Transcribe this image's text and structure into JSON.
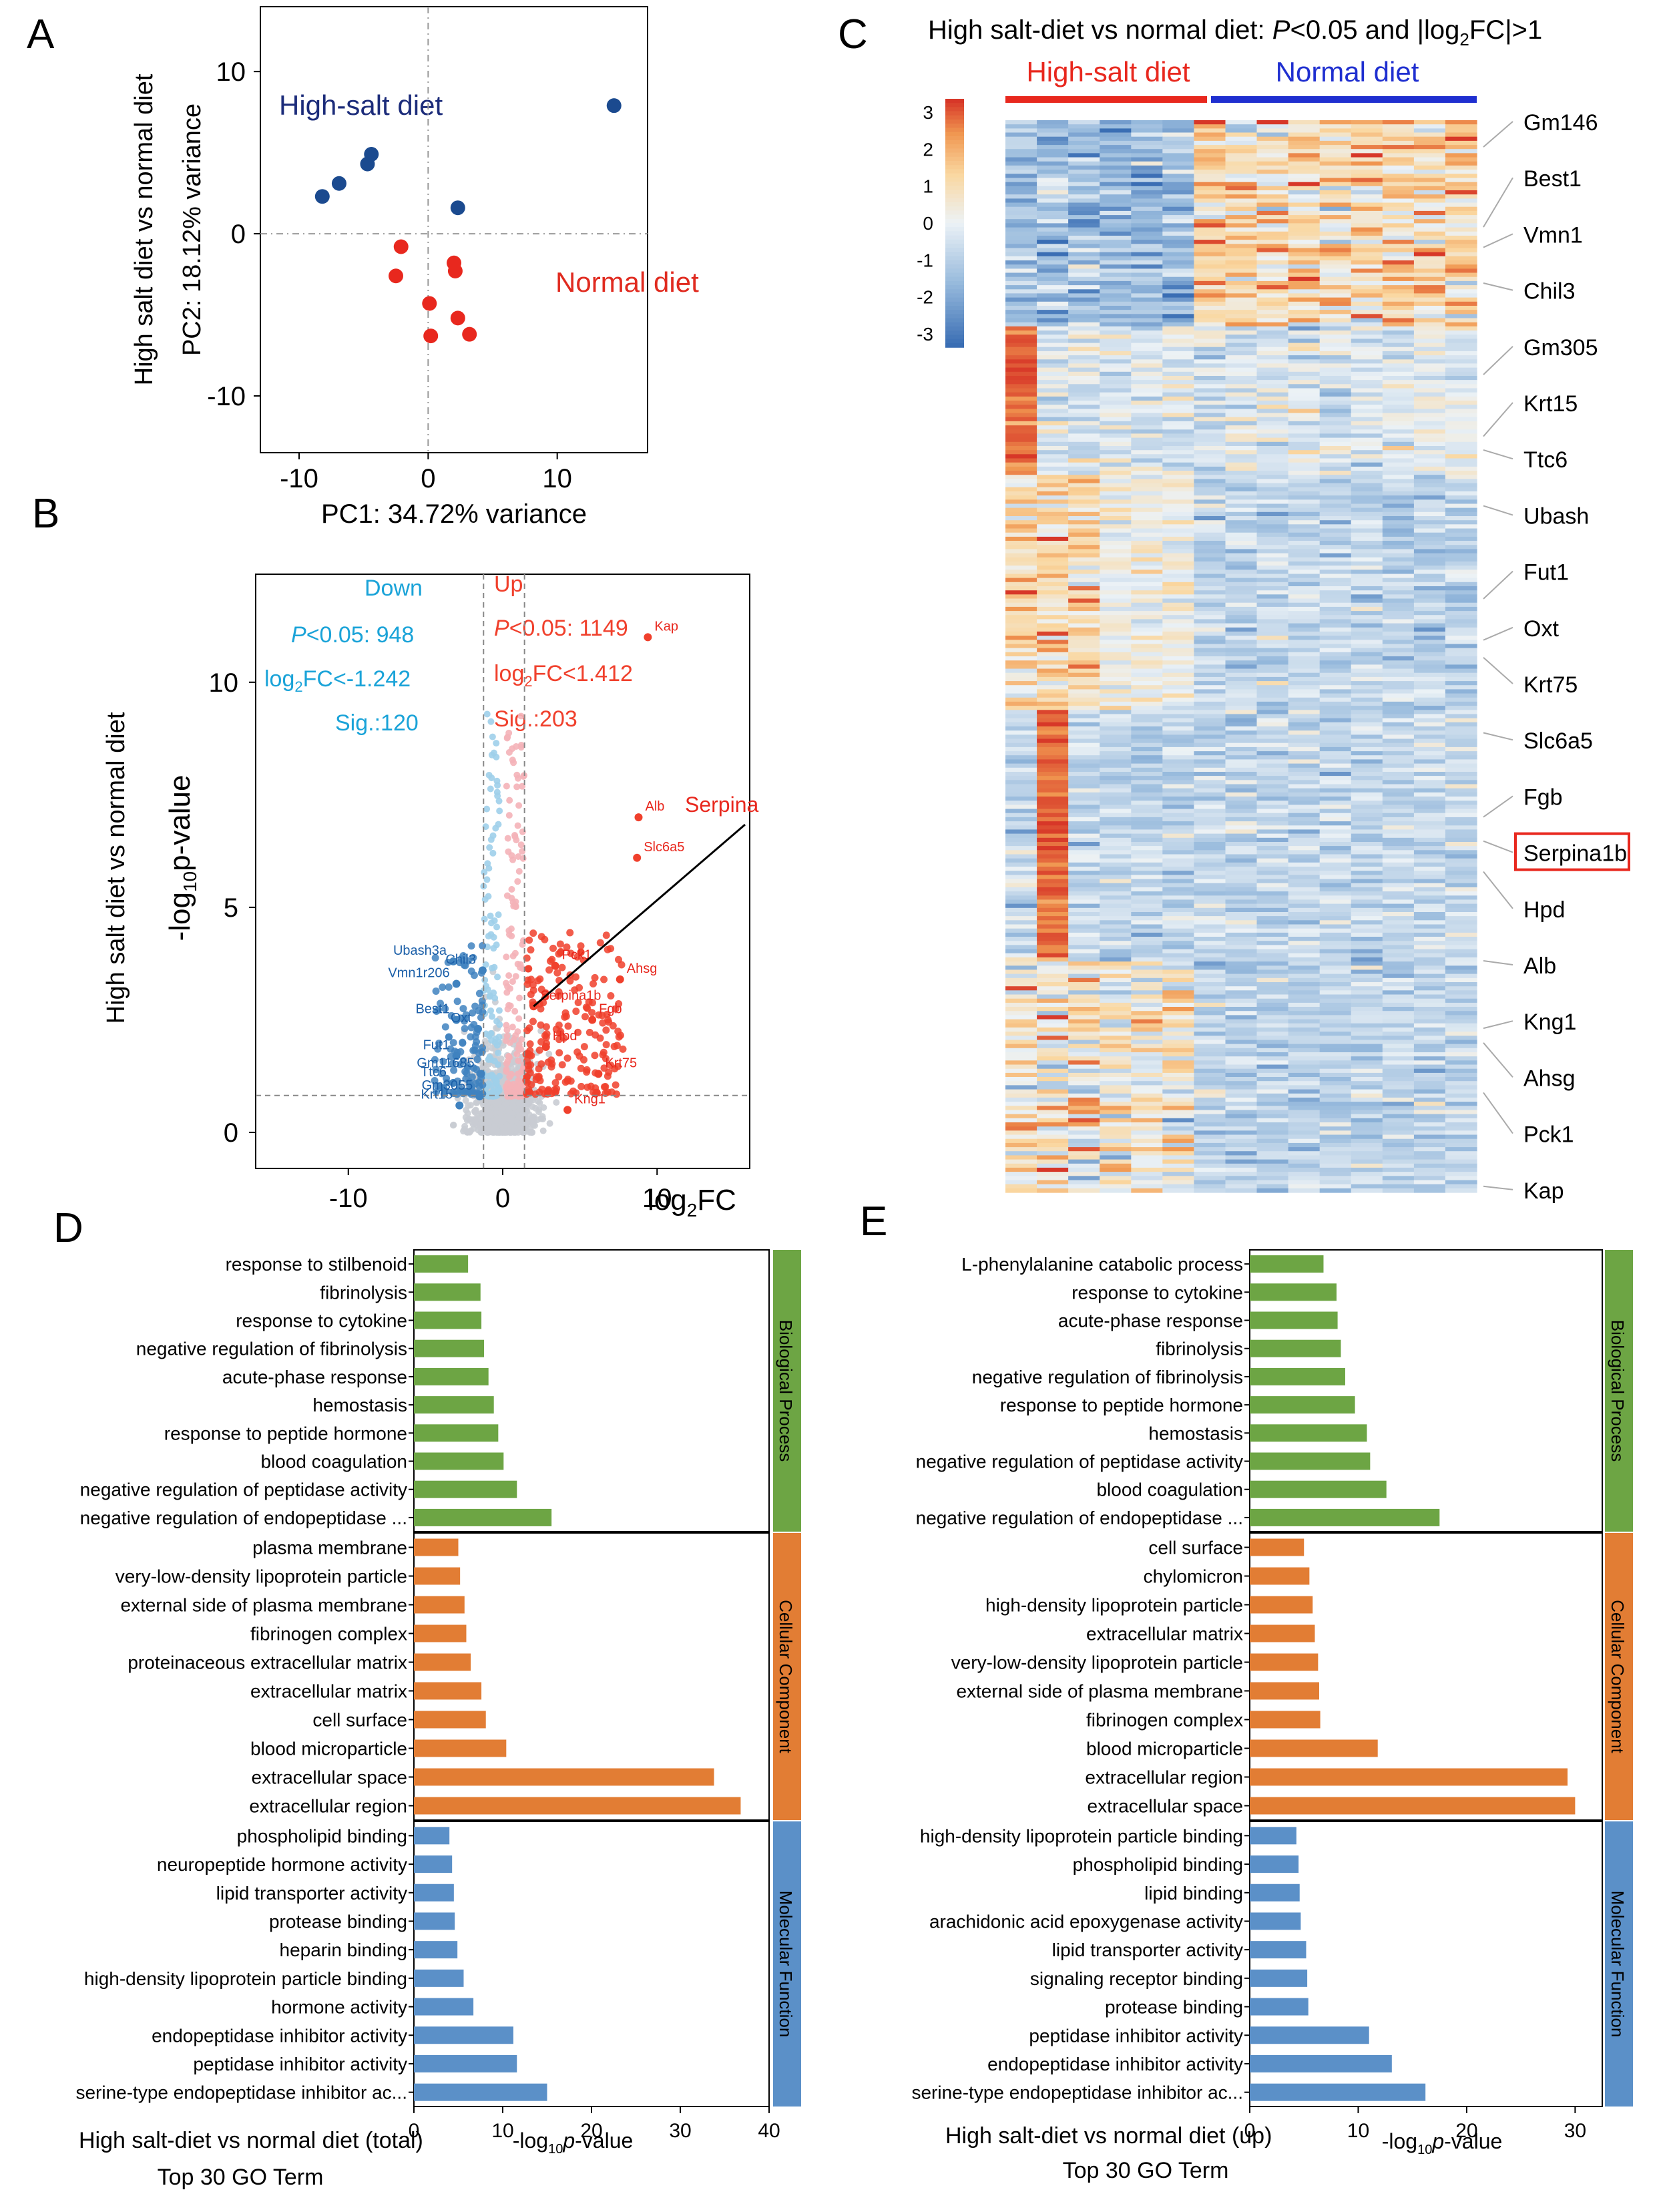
{
  "panel_labels": {
    "a": "A",
    "b": "B",
    "c": "C",
    "d": "D",
    "e": "E"
  },
  "colors": {
    "blue_dark": "#1b4a8f",
    "red": "#e8281e",
    "down_blue": "#1aa3d8",
    "up_red": "#f0402c",
    "green": "#6da544",
    "orange": "#e27d34",
    "mf_blue": "#5b90c8",
    "grey": "#bdbdbd"
  },
  "chart_data": [
    {
      "panel": "A",
      "type": "scatter",
      "title": "",
      "xlabel": "PC1: 34.72% variance",
      "ylabel": "PC2: 18.12% variance",
      "side_label": "High salt diet vs normal diet",
      "xlim": [
        -13,
        17
      ],
      "ylim": [
        -13.5,
        14
      ],
      "xticks": [
        -10,
        0,
        10
      ],
      "yticks": [
        -10,
        0,
        10
      ],
      "tick_labels_x": [
        "-10",
        "0",
        "10"
      ],
      "tick_labels_y": [
        "-10",
        "0",
        "10"
      ],
      "annotations": [
        "High-salt diet",
        "Normal diet"
      ],
      "series": [
        {
          "name": "High-salt diet",
          "color": "#1b4a8f",
          "points": [
            [
              -8.2,
              2.3
            ],
            [
              -6.9,
              3.1
            ],
            [
              -4.7,
              4.3
            ],
            [
              -4.4,
              4.9
            ],
            [
              2.3,
              1.6
            ],
            [
              14.4,
              7.9
            ]
          ]
        },
        {
          "name": "Normal diet",
          "color": "#e8281e",
          "points": [
            [
              -2.1,
              -0.8
            ],
            [
              -2.5,
              -2.6
            ],
            [
              2.0,
              -1.8
            ],
            [
              2.1,
              -2.3
            ],
            [
              0.1,
              -4.3
            ],
            [
              2.3,
              -5.2
            ],
            [
              0.2,
              -6.3
            ],
            [
              3.2,
              -6.2
            ]
          ]
        }
      ]
    },
    {
      "panel": "B",
      "type": "scatter",
      "subtype": "volcano",
      "xlabel": "log2FC",
      "ylabel": "-log10p-value",
      "side_label": "High salt diet vs normal diet",
      "xlim": [
        -16,
        16
      ],
      "ylim": [
        -0.8,
        12.4
      ],
      "xticks": [
        -10,
        0,
        10
      ],
      "yticks": [
        0,
        5,
        10
      ],
      "tick_labels_x": [
        "-10",
        "0",
        "10"
      ],
      "tick_labels_y": [
        "0",
        "5",
        "10"
      ],
      "thresholds": {
        "log2fc_down": -1.242,
        "log2fc_up": 1.412,
        "p": 0.82
      },
      "legend": {
        "down": {
          "title": "Down",
          "p_prefix": "P",
          "p_text": "<0.05: 948",
          "fc_text": "log2FC<-1.242",
          "sig_text": "Sig.:120"
        },
        "up": {
          "title": "Up",
          "p_prefix": "P",
          "p_text": "<0.05: 1149",
          "fc_text": "log2FC<1.412",
          "sig_text": "Sig.:203"
        }
      },
      "labeled_genes_up": [
        {
          "gene": "Kap",
          "x": 9.4,
          "y": 11.0
        },
        {
          "gene": "Alb",
          "x": 8.8,
          "y": 7.0
        },
        {
          "gene": "Slc6a5",
          "x": 8.7,
          "y": 6.1
        },
        {
          "gene": "Pck1",
          "x": 3.4,
          "y": 3.7
        },
        {
          "gene": "Ahsg",
          "x": 7.6,
          "y": 3.4
        },
        {
          "gene": "Serpina1b",
          "x": 2.0,
          "y": 2.8
        },
        {
          "gene": "Fgb",
          "x": 5.8,
          "y": 2.5
        },
        {
          "gene": "Hpd",
          "x": 2.8,
          "y": 1.9
        },
        {
          "gene": "Krt75",
          "x": 6.2,
          "y": 1.3
        },
        {
          "gene": "Kng1",
          "x": 4.2,
          "y": 0.5
        }
      ],
      "labeled_genes_down": [
        {
          "gene": "Ubash3a",
          "x": -3.2,
          "y": 3.8
        },
        {
          "gene": "Vmn1r206",
          "x": -3.0,
          "y": 3.3
        },
        {
          "gene": "Chil3",
          "x": -1.3,
          "y": 3.6
        },
        {
          "gene": "Best1",
          "x": -3.0,
          "y": 2.5
        },
        {
          "gene": "Oxt",
          "x": -1.6,
          "y": 2.3
        },
        {
          "gene": "Fut1",
          "x": -3.0,
          "y": 1.7
        },
        {
          "gene": "Gm11685",
          "x": -1.4,
          "y": 1.3
        },
        {
          "gene": "Ttc6",
          "x": -3.2,
          "y": 1.1
        },
        {
          "gene": "Gm3055",
          "x": -1.5,
          "y": 0.8
        },
        {
          "gene": "Krt15",
          "x": -2.8,
          "y": 0.6
        }
      ],
      "callout": "Serpina"
    },
    {
      "panel": "C",
      "type": "heatmap",
      "title_prefix": "High salt-diet vs normal diet: ",
      "title_p": "P",
      "title_suffix": "<0.05 and |log2FC|>1",
      "groups": [
        {
          "name": "High-salt diet",
          "color": "#e8281e"
        },
        {
          "name": "Normal diet",
          "color": "#1f2fd0"
        }
      ],
      "color_scale": {
        "ticks": [
          "3",
          "2",
          "1",
          "0",
          "-1",
          "-2",
          "-3"
        ],
        "min": -3,
        "max": 3
      },
      "n_columns": 15,
      "n_rows": 260,
      "row_labels": [
        "Gm146",
        "Best1",
        "Vmn1",
        "Chil3",
        "Gm305",
        "Krt15",
        "Ttc6",
        "Ubash",
        "Fut1",
        "Oxt",
        "Krt75",
        "Slc6a5",
        "Fgb",
        "Serpina1b",
        "Hpd",
        "Alb",
        "Kng1",
        "Ahsg",
        "Pck1",
        "Kap"
      ],
      "highlight": "Serpina1b"
    },
    {
      "panel": "D",
      "type": "bar",
      "orientation": "horizontal",
      "xlabel": "-log10p-value",
      "subtitle": "High salt-diet vs normal diet (total)",
      "subtitle2": "Top 30 GO Term",
      "xlim": [
        0,
        40
      ],
      "xticks": [
        "0",
        "10",
        "20",
        "30",
        "40"
      ],
      "groups": [
        {
          "name": "Biological Process",
          "color": "#6da544",
          "categories": [
            "response to stilbenoid",
            "fibrinolysis",
            "response to cytokine",
            "negative regulation of fibrinolysis",
            "acute-phase response",
            "hemostasis",
            "response to peptide hormone",
            "blood coagulation",
            "negative regulation of peptidase activity",
            "negative regulation of endopeptidase ..."
          ],
          "values": [
            6.1,
            7.5,
            7.6,
            7.9,
            8.4,
            9.0,
            9.5,
            10.1,
            11.6,
            15.5
          ]
        },
        {
          "name": "Cellular Component",
          "color": "#e27d34",
          "categories": [
            "plasma membrane",
            "very-low-density lipoprotein particle",
            "external side of plasma membrane",
            "fibrinogen complex",
            "proteinaceous extracellular matrix",
            "extracellular matrix",
            "cell surface",
            "blood microparticle",
            "extracellular space",
            "extracellular region"
          ],
          "values": [
            5.0,
            5.2,
            5.7,
            5.9,
            6.4,
            7.6,
            8.1,
            10.4,
            33.8,
            36.8
          ]
        },
        {
          "name": "Molecular Function",
          "color": "#5b90c8",
          "categories": [
            "phospholipid binding",
            "neuropeptide hormone activity",
            "lipid transporter activity",
            "protease binding",
            "heparin binding",
            "high-density lipoprotein particle binding",
            "hormone activity",
            "endopeptidase inhibitor activity",
            "peptidase inhibitor activity",
            "serine-type endopeptidase inhibitor ac..."
          ],
          "values": [
            4.0,
            4.3,
            4.5,
            4.6,
            4.9,
            5.6,
            6.7,
            11.2,
            11.6,
            15.0
          ]
        }
      ]
    },
    {
      "panel": "E",
      "type": "bar",
      "orientation": "horizontal",
      "xlabel": "-log10p-value",
      "subtitle": "High salt-diet vs normal diet (up)",
      "subtitle2": "Top 30 GO Term",
      "xlim": [
        0,
        32.5
      ],
      "xticks": [
        "0",
        "10",
        "20",
        "30"
      ],
      "groups": [
        {
          "name": "Biological Process",
          "color": "#6da544",
          "categories": [
            "L-phenylalanine catabolic process",
            "response to cytokine",
            "acute-phase response",
            "fibrinolysis",
            "negative regulation of fibrinolysis",
            "response to peptide hormone",
            "hemostasis",
            "negative regulation of peptidase activity",
            "blood coagulation",
            "negative regulation of endopeptidase ..."
          ],
          "values": [
            6.8,
            8.0,
            8.1,
            8.4,
            8.8,
            9.7,
            10.8,
            11.1,
            12.6,
            17.5
          ]
        },
        {
          "name": "Cellular Component",
          "color": "#e27d34",
          "categories": [
            "cell surface",
            "chylomicron",
            "high-density lipoprotein particle",
            "extracellular matrix",
            "very-low-density lipoprotein particle",
            "external side of plasma membrane",
            "fibrinogen complex",
            "blood microparticle",
            "extracellular region",
            "extracellular space"
          ],
          "values": [
            5.0,
            5.5,
            5.8,
            6.0,
            6.3,
            6.4,
            6.5,
            11.8,
            29.3,
            30.0
          ]
        },
        {
          "name": "Molecular Function",
          "color": "#5b90c8",
          "categories": [
            "high-density lipoprotein particle binding",
            "phospholipid binding",
            "lipid binding",
            "arachidonic acid epoxygenase activity",
            "lipid transporter activity",
            "signaling receptor binding",
            "protease binding",
            "peptidase inhibitor activity",
            "endopeptidase inhibitor activity",
            "serine-type endopeptidase inhibitor ac..."
          ],
          "values": [
            4.3,
            4.5,
            4.6,
            4.7,
            5.2,
            5.3,
            5.4,
            11.0,
            13.1,
            16.2
          ]
        }
      ]
    }
  ]
}
